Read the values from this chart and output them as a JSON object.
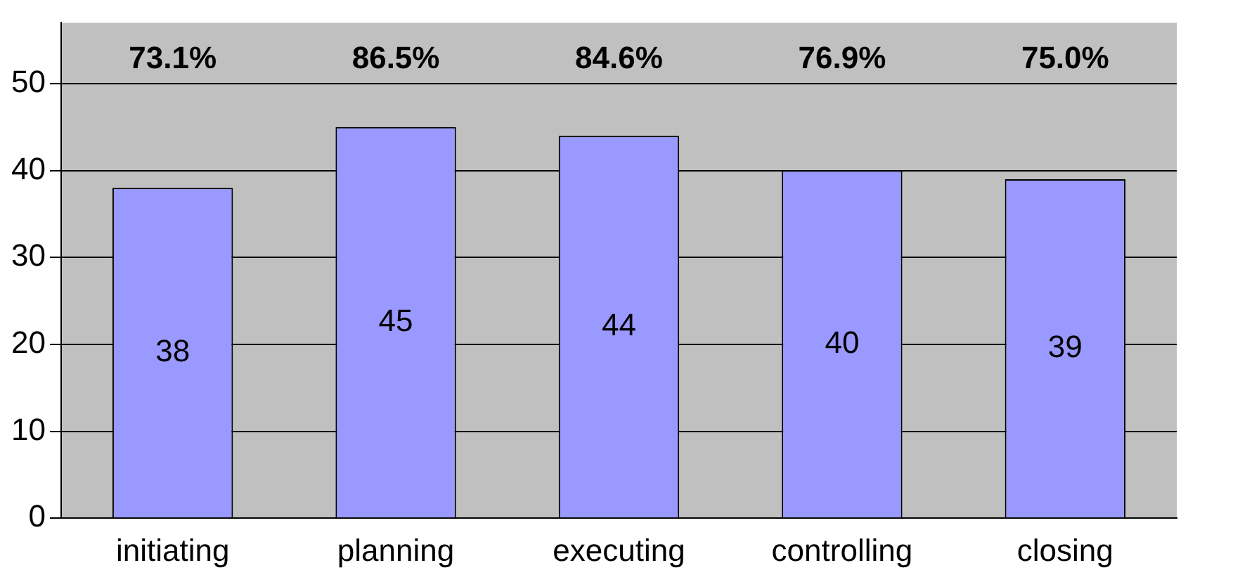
{
  "chart_data": {
    "type": "bar",
    "categories": [
      "initiating",
      "planning",
      "executing",
      "controlling",
      "closing"
    ],
    "values": [
      38,
      45,
      44,
      40,
      39
    ],
    "color": "#9999ff",
    "ylim": [
      0,
      57
    ],
    "yticks": [
      0,
      10,
      20,
      30,
      40,
      50
    ],
    "grid": "y",
    "legend": false,
    "data_labels": true,
    "annotations": [
      "73.1%",
      "86.5%",
      "84.6%",
      "76.9%",
      "75.0%"
    ]
  }
}
